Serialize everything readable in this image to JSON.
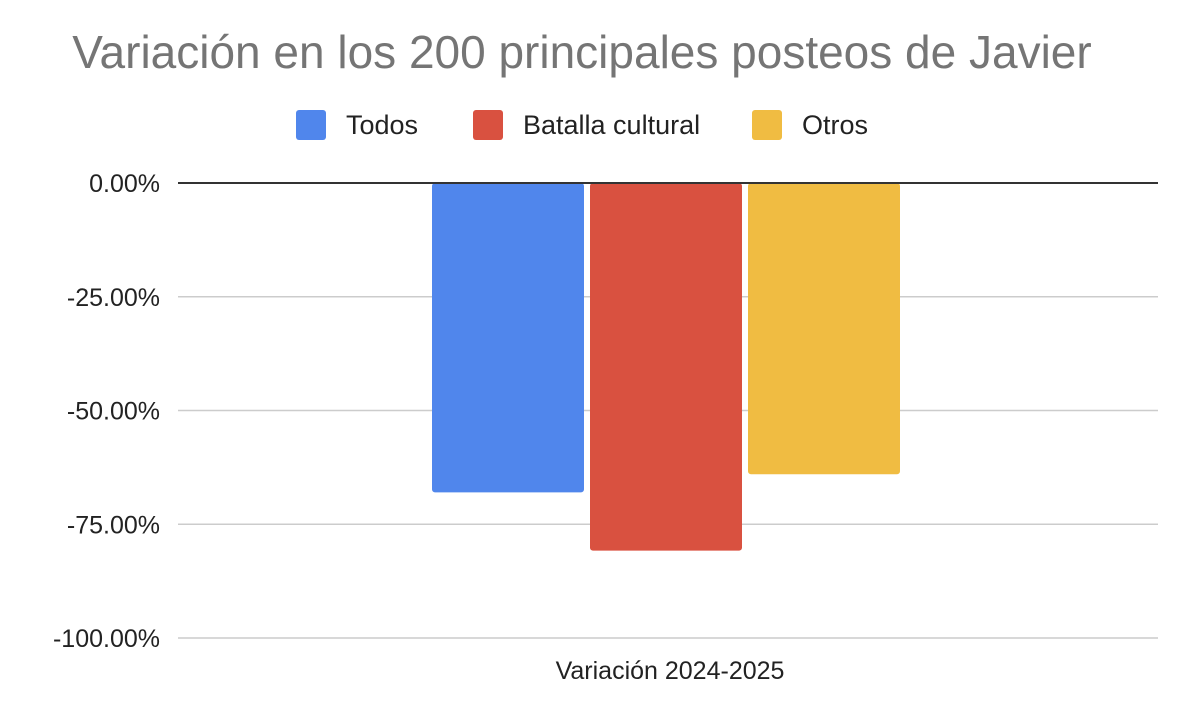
{
  "chart_data": {
    "type": "bar",
    "title": "Variación en los 200 principales posteos de Javier",
    "xlabel": "",
    "ylabel": "",
    "categories": [
      "Variación 2024-2025"
    ],
    "series": [
      {
        "name": "Todos",
        "color": "#5086ec",
        "values": [
          -68.0
        ]
      },
      {
        "name": "Batalla cultural",
        "color": "#d95140",
        "values": [
          -80.8
        ]
      },
      {
        "name": "Otros",
        "color": "#f0bc42",
        "values": [
          -64.0
        ]
      }
    ],
    "ylim": [
      -100,
      0
    ],
    "yticks": [
      {
        "value": 0,
        "label": "0.00%"
      },
      {
        "value": -25,
        "label": "-25.00%"
      },
      {
        "value": -50,
        "label": "-50.00%"
      },
      {
        "value": -75,
        "label": "-75.00%"
      },
      {
        "value": -100,
        "label": "-100.00%"
      }
    ],
    "legend_position": "top",
    "grid": true,
    "colors": {
      "title": "#757575",
      "text": "#222222",
      "gridline": "#cccccc",
      "zero_line": "#333333"
    }
  }
}
